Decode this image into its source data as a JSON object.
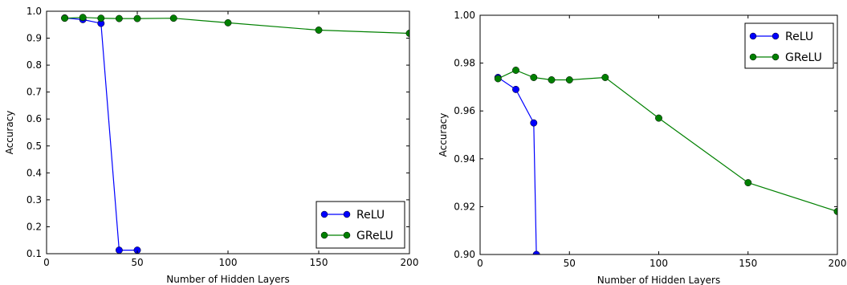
{
  "chart_data": [
    {
      "type": "line",
      "xlabel": "Number of Hidden Layers",
      "ylabel": "Accuracy",
      "xlim": [
        0,
        200
      ],
      "ylim": [
        0.1,
        1.0
      ],
      "xticks": [
        0,
        50,
        100,
        150,
        200
      ],
      "xtick_labels": [
        "0",
        "50",
        "100",
        "150",
        "200"
      ],
      "yticks": [
        0.1,
        0.2,
        0.3,
        0.4,
        0.5,
        0.6,
        0.7,
        0.8,
        0.9,
        1.0
      ],
      "ytick_labels": [
        "0.1",
        "0.2",
        "0.3",
        "0.4",
        "0.5",
        "0.6",
        "0.7",
        "0.8",
        "0.9",
        "1.0"
      ],
      "grid": false,
      "legend_position": "bottom-right",
      "series": [
        {
          "name": "ReLU",
          "color": "#0000ff",
          "x": [
            10,
            20,
            30,
            40,
            50
          ],
          "y": [
            0.975,
            0.969,
            0.955,
            0.113,
            0.113
          ]
        },
        {
          "name": "GReLU",
          "color": "#008000",
          "x": [
            10,
            20,
            30,
            40,
            50,
            70,
            100,
            150,
            200
          ],
          "y": [
            0.974,
            0.977,
            0.974,
            0.973,
            0.973,
            0.974,
            0.957,
            0.93,
            0.918
          ]
        }
      ]
    },
    {
      "type": "line",
      "xlabel": "Number of Hidden Layers",
      "ylabel": "Accuracy",
      "xlim": [
        0,
        200
      ],
      "ylim": [
        0.9,
        1.0
      ],
      "xticks": [
        0,
        50,
        100,
        150,
        200
      ],
      "xtick_labels": [
        "0",
        "50",
        "100",
        "150",
        "200"
      ],
      "yticks": [
        0.9,
        0.92,
        0.94,
        0.96,
        0.98,
        1.0
      ],
      "ytick_labels": [
        "0.90",
        "0.92",
        "0.94",
        "0.96",
        "0.98",
        "1.00"
      ],
      "grid": false,
      "legend_position": "top-right",
      "series": [
        {
          "name": "ReLU",
          "color": "#0000ff",
          "x": [
            10,
            20,
            30,
            31.5
          ],
          "y": [
            0.974,
            0.969,
            0.955,
            0.9
          ]
        },
        {
          "name": "GReLU",
          "color": "#008000",
          "x": [
            10,
            20,
            30,
            40,
            50,
            70,
            100,
            150,
            200
          ],
          "y": [
            0.9735,
            0.977,
            0.974,
            0.973,
            0.973,
            0.974,
            0.957,
            0.93,
            0.918
          ]
        }
      ]
    }
  ]
}
